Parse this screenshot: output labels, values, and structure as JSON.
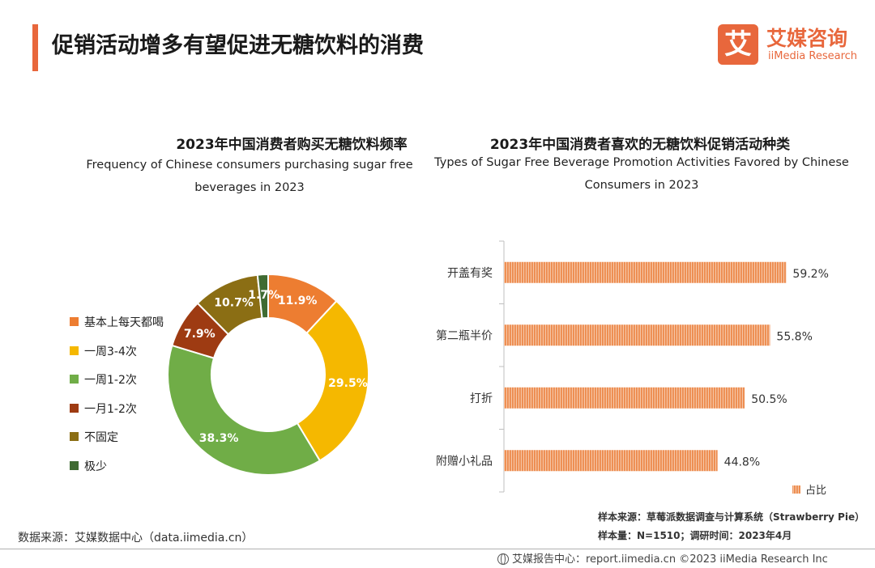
{
  "page": {
    "title": "促销活动增多有望促进无糖饮料的消费",
    "logo": {
      "mark": "艾",
      "name_cn": "艾媒咨询",
      "name_en": "iiMedia Research"
    },
    "source_left": "数据来源：艾媒数据中心（data.iimedia.cn）",
    "footnote_sample_source": "样本来源：草莓派数据调查与计算系统（Strawberry Pie）",
    "footnote_sample_size": "样本量：N=1510；调研时间：2023年4月",
    "footer": "艾媒报告中心：report.iimedia.cn  ©2023  iiMedia Research  Inc"
  },
  "chart_data": [
    {
      "type": "pie",
      "title": "2023年中国消费者购买无糖饮料频率",
      "subtitle_line1": "Frequency of Chinese consumers purchasing sugar free",
      "subtitle_line2": "beverages in 2023",
      "donut": true,
      "categories": [
        "基本上每天都喝",
        "一周3-4次",
        "一周1-2次",
        "一月1-2次",
        "不固定",
        "极少"
      ],
      "values": [
        11.9,
        29.5,
        38.3,
        7.9,
        10.7,
        1.7
      ],
      "data_labels": [
        "11.9%",
        "29.5%",
        "38.3%",
        "7.9%",
        "10.7%",
        "1.7%"
      ],
      "colors": [
        "#ed7d31",
        "#f5b800",
        "#70ad47",
        "#9e3b12",
        "#8b6e14",
        "#3f6b32"
      ],
      "legend_position": "left"
    },
    {
      "type": "bar",
      "orientation": "horizontal",
      "title": "2023年中国消费者喜欢的无糖饮料促销活动种类",
      "subtitle_line1": "Types of Sugar Free Beverage Promotion Activities Favored by Chinese",
      "subtitle_line2": "Consumers in 2023",
      "categories": [
        "开盖有奖",
        "第二瓶半价",
        "打折",
        "附赠小礼品"
      ],
      "series": [
        {
          "name": "占比",
          "values": [
            59.2,
            55.8,
            50.5,
            44.8
          ],
          "color": "#ed8a4c"
        }
      ],
      "data_labels": [
        "59.2%",
        "55.8%",
        "50.5%",
        "44.8%"
      ],
      "xlim": [
        0,
        70
      ],
      "legend_position": "bottom-right",
      "grid": false
    }
  ]
}
